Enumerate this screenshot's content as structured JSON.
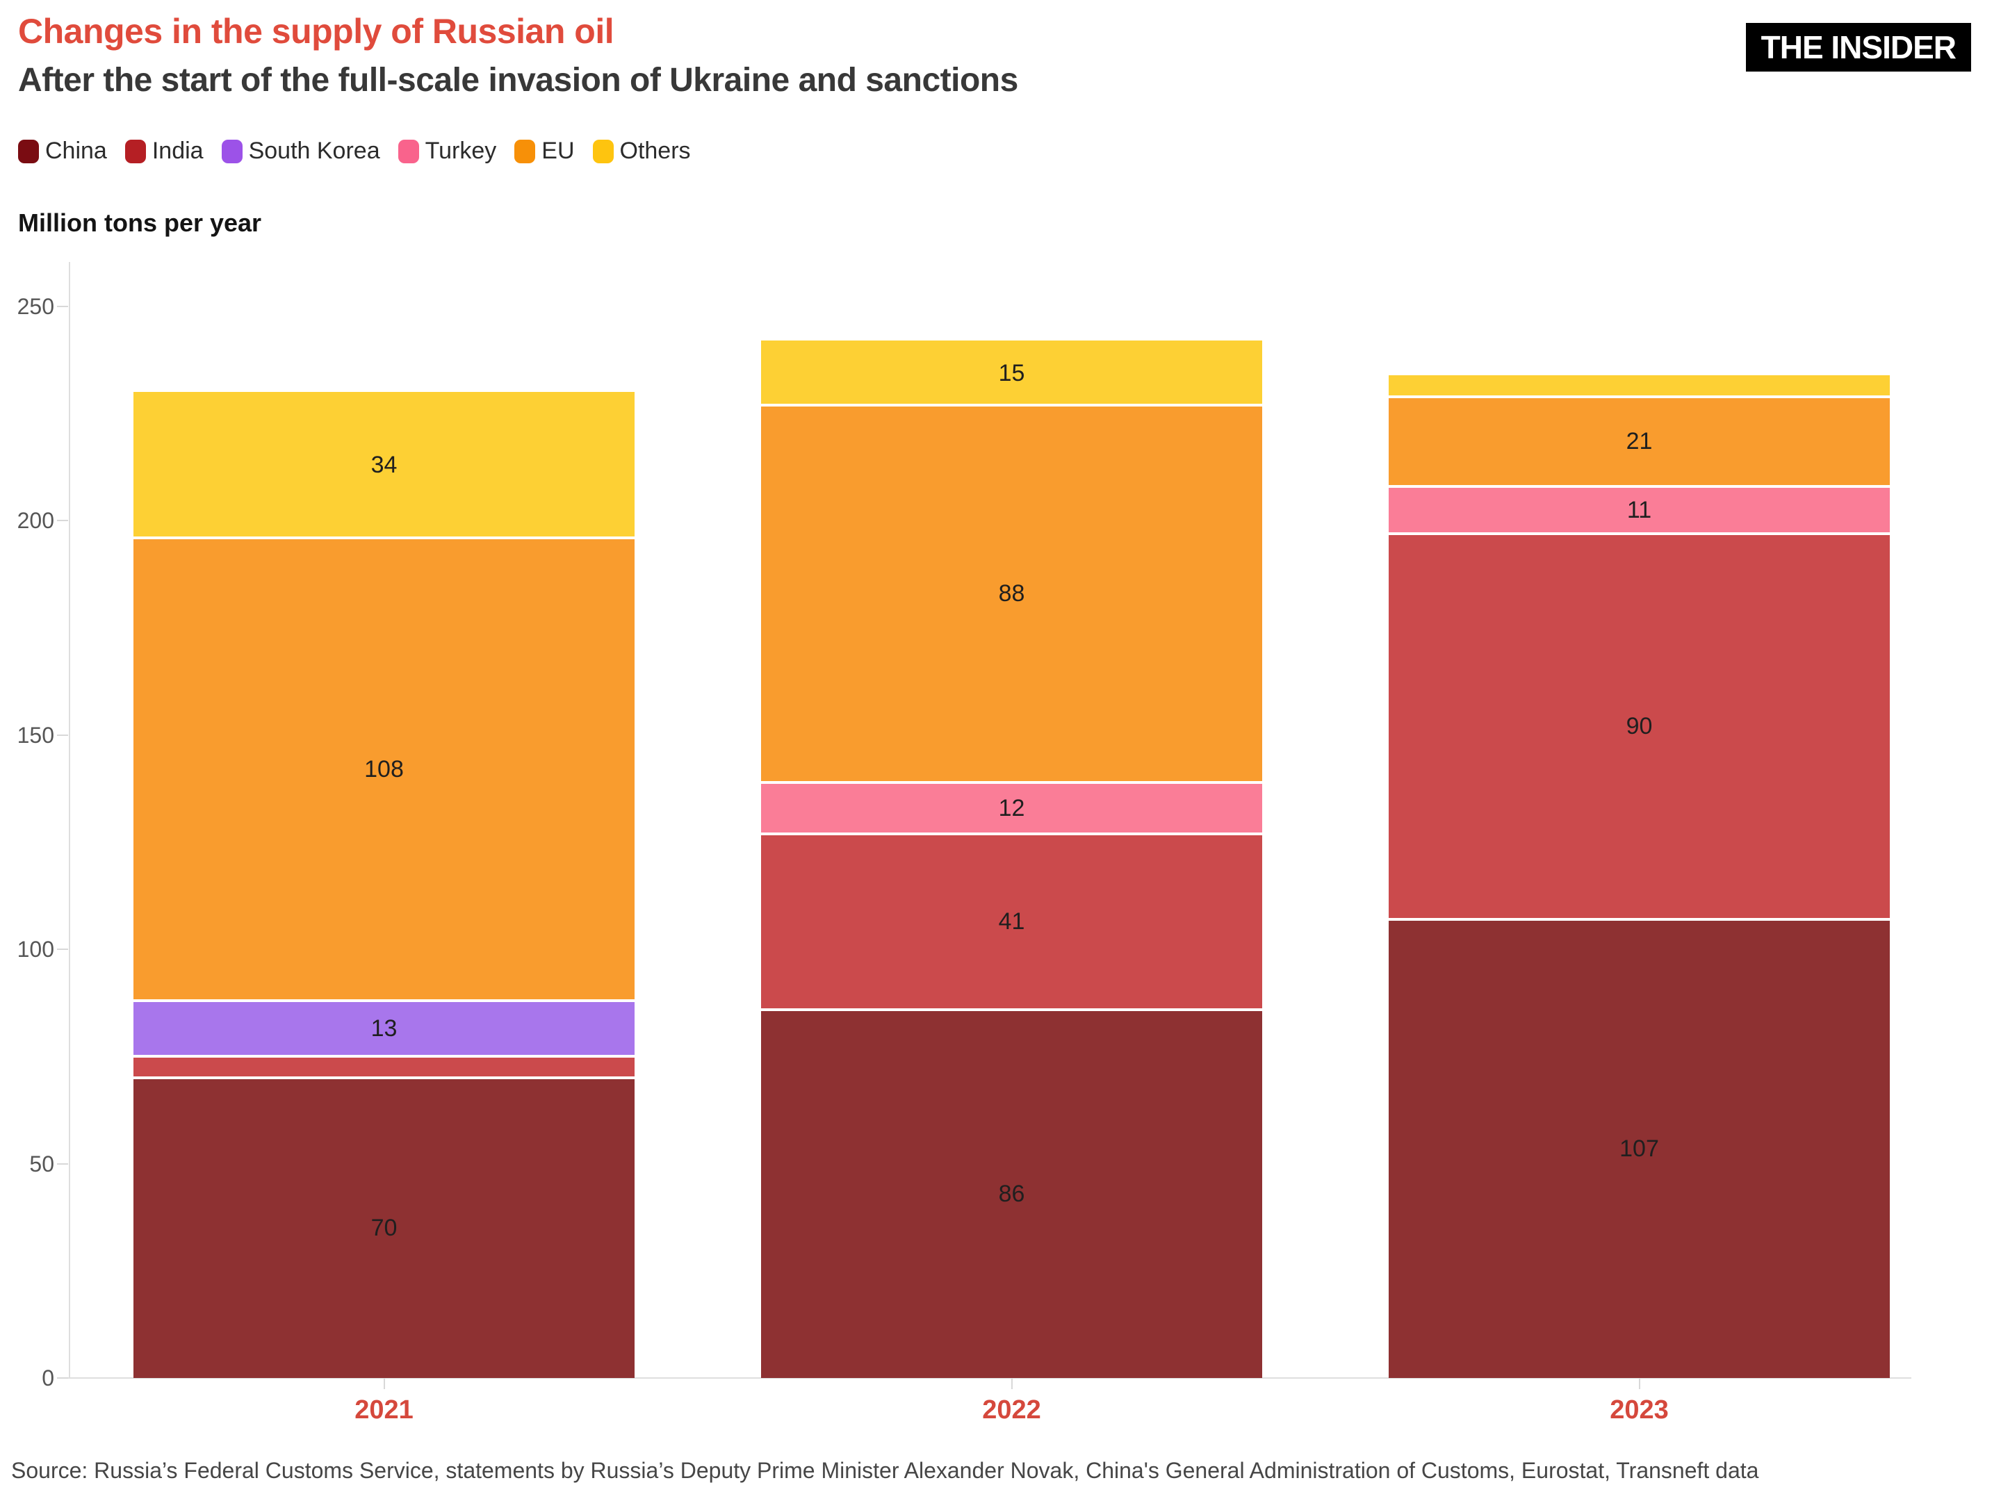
{
  "header": {
    "title": "Changes in the supply of Russian oil",
    "subtitle": "After the start of the full-scale invasion of Ukraine and sanctions",
    "logo": "THE INSIDER"
  },
  "source": "Source: Russia’s Federal Customs Service, statements by Russia’s Deputy Prime Minister Alexander Novak, China's General Administration of Customs, Eurostat, Transneft data",
  "colors": {
    "title_accent": "#E04B3C",
    "year_label": "#D5483C",
    "axis_line": "#dedede",
    "segment_divider": "#ffffff",
    "logo_bg": "#000000",
    "logo_text": "#ffffff"
  },
  "chart_data": {
    "type": "bar",
    "stacked": true,
    "title": "Changes in the supply of Russian oil",
    "subtitle": "After the start of the full-scale invasion of Ukraine and sanctions",
    "ylabel": "Million tons per year",
    "xlabel": "",
    "categories": [
      "2021",
      "2022",
      "2023"
    ],
    "yticks": [
      0,
      50,
      100,
      150,
      200,
      250
    ],
    "ylim": [
      0,
      250
    ],
    "grid": false,
    "legend_position": "top",
    "series": [
      {
        "name": "China",
        "legend_color": "#7A0C12",
        "bar_color": "#8E3132",
        "values": [
          70,
          86,
          107
        ],
        "labels": [
          "70",
          "86",
          "107"
        ]
      },
      {
        "name": "India",
        "legend_color": "#B51F24",
        "bar_color": "#CB4A4C",
        "values": [
          5,
          41,
          90
        ],
        "labels": [
          null,
          "41",
          "90"
        ]
      },
      {
        "name": "South Korea",
        "legend_color": "#9C52E8",
        "bar_color": "#A876EC",
        "values": [
          13,
          0,
          0
        ],
        "labels": [
          "13",
          null,
          null
        ]
      },
      {
        "name": "Turkey",
        "legend_color": "#F9638C",
        "bar_color": "#FA7D97",
        "values": [
          0,
          12,
          11
        ],
        "labels": [
          null,
          "12",
          "11"
        ]
      },
      {
        "name": "EU",
        "legend_color": "#F79008",
        "bar_color": "#F99C2E",
        "values": [
          108,
          88,
          21
        ],
        "labels": [
          "108",
          "88",
          "21"
        ]
      },
      {
        "name": "Others",
        "legend_color": "#FEC40F",
        "bar_color": "#FDD034",
        "values": [
          34,
          15,
          5
        ],
        "labels": [
          "34",
          "15",
          null
        ]
      }
    ]
  }
}
